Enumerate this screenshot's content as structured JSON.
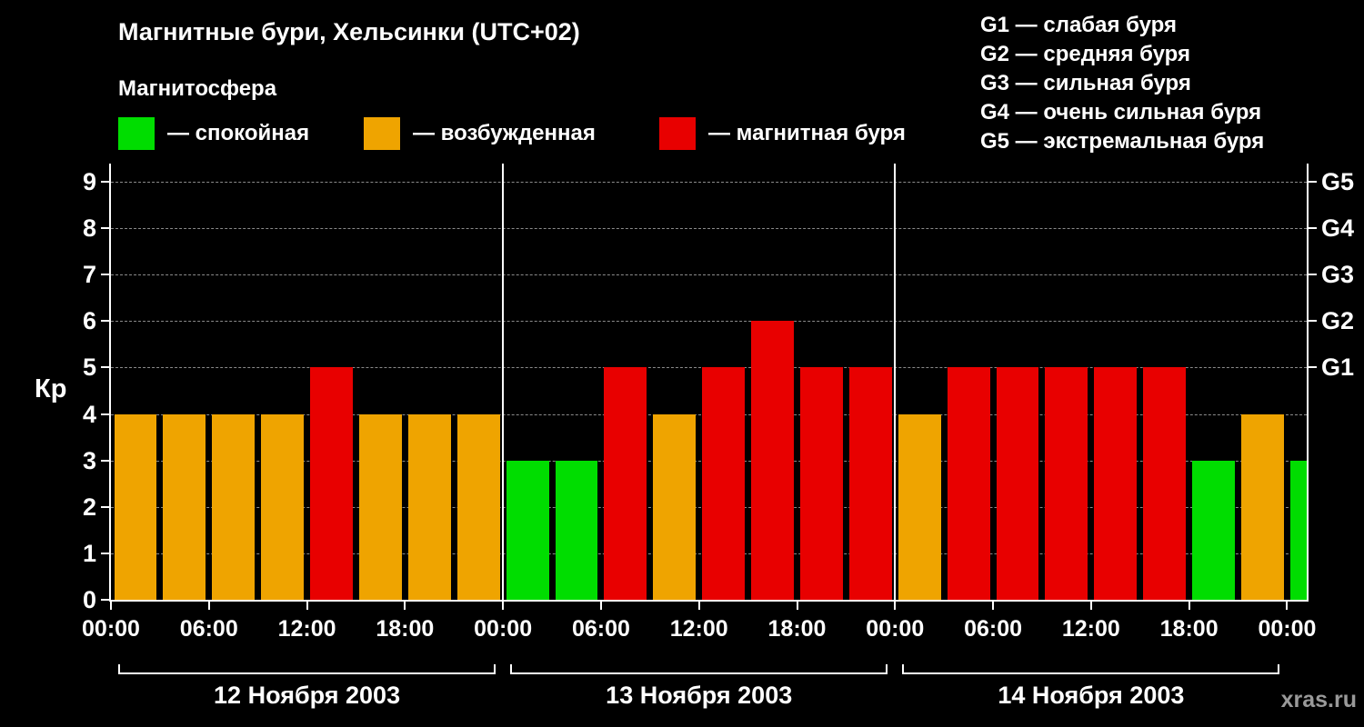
{
  "header": {
    "title": "Магнитные бури, Хельсинки (UTC+02)",
    "subtitle": "Магнитосфера"
  },
  "legend": [
    {
      "name": "quiet",
      "label": "— спокойная",
      "color": "#00dd00"
    },
    {
      "name": "excited",
      "label": "— возбужденная",
      "color": "#efa400"
    },
    {
      "name": "storm",
      "label": "— магнитная буря",
      "color": "#e80000"
    }
  ],
  "g_scale_legend": [
    "G1 — слабая буря",
    "G2 — средняя буря",
    "G3 — сильная буря",
    "G4 — очень сильная буря",
    "G5 — экстремальная буря"
  ],
  "watermark": "xras.ru",
  "chart_data": {
    "type": "bar",
    "title": "Магнитные бури, Хельсинки (UTC+02)",
    "ylabel": "Кр",
    "ylim": [
      0,
      9.4
    ],
    "yticks": [
      0,
      1,
      2,
      3,
      4,
      5,
      6,
      7,
      8,
      9
    ],
    "grid": "horizontal dashed at Kp 1..9",
    "right_axis_ticks": [
      {
        "label": "G1",
        "value": 5
      },
      {
        "label": "G2",
        "value": 6
      },
      {
        "label": "G3",
        "value": 7
      },
      {
        "label": "G4",
        "value": 8
      },
      {
        "label": "G5",
        "value": 9
      }
    ],
    "time_tick_labels": [
      "00:00",
      "06:00",
      "12:00",
      "18:00"
    ],
    "final_tick_label": "00:00",
    "hours_per_bar": 3,
    "color_rules": {
      "quiet_max": 3,
      "excited_max": 4
    },
    "colors": {
      "quiet": "#00dd00",
      "excited": "#efa400",
      "storm": "#e80000"
    },
    "days": [
      {
        "date_label": "12 Ноября 2003",
        "kp_values": [
          4,
          4,
          4,
          4,
          5,
          4,
          4,
          4
        ]
      },
      {
        "date_label": "13 Ноября 2003",
        "kp_values": [
          3,
          3,
          5,
          4,
          5,
          6,
          5,
          5
        ]
      },
      {
        "date_label": "14 Ноября 2003",
        "kp_values": [
          4,
          5,
          5,
          5,
          5,
          5,
          3,
          4
        ]
      }
    ],
    "partial_next_bar": {
      "kp": 3
    }
  }
}
